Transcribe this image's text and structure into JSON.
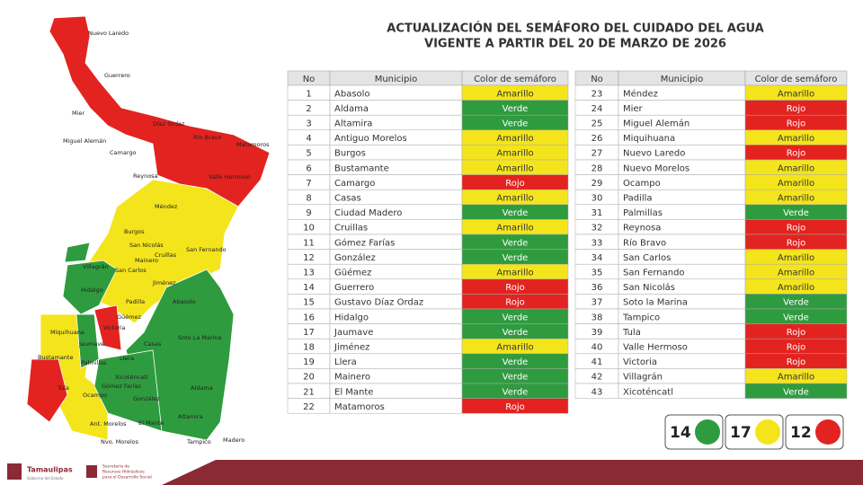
{
  "title": [
    "ACTUALIZACIÓN DEL SEMÁFORO DEL CUIDADO DEL AGUA",
    "VIGENTE A PARTIR DEL 20 DE MARZO DE 2026"
  ],
  "table_header": [
    "No",
    "Municipio",
    "Color de semáforo"
  ],
  "status_colors": {
    "Amarillo": {
      "fill": "#f4e41c",
      "text": "#333"
    },
    "Verde": {
      "fill": "#2f9b3f",
      "text": "#fff"
    },
    "Rojo": {
      "fill": "#e3231f",
      "text": "#fff"
    }
  },
  "tables": [
    {
      "rows": [
        [
          1,
          "Abasolo",
          "Amarillo"
        ],
        [
          2,
          "Aldama",
          "Verde"
        ],
        [
          3,
          "Altamira",
          "Verde"
        ],
        [
          4,
          "Antiguo Morelos",
          "Amarillo"
        ],
        [
          5,
          "Burgos",
          "Amarillo"
        ],
        [
          6,
          "Bustamante",
          "Amarillo"
        ],
        [
          7,
          "Camargo",
          "Rojo"
        ],
        [
          8,
          "Casas",
          "Amarillo"
        ],
        [
          9,
          "Ciudad Madero",
          "Verde"
        ],
        [
          10,
          "Cruillas",
          "Amarillo"
        ],
        [
          11,
          "Gómez Farías",
          "Verde"
        ],
        [
          12,
          "González",
          "Verde"
        ],
        [
          13,
          "Güémez",
          "Amarillo"
        ],
        [
          14,
          "Guerrero",
          "Rojo"
        ],
        [
          15,
          "Gustavo Díaz Ordaz",
          "Rojo"
        ],
        [
          16,
          "Hidalgo",
          "Verde"
        ],
        [
          17,
          "Jaumave",
          "Verde"
        ],
        [
          18,
          "Jiménez",
          "Amarillo"
        ],
        [
          19,
          "Llera",
          "Verde"
        ],
        [
          20,
          "Mainero",
          "Verde"
        ],
        [
          21,
          "El Mante",
          "Verde"
        ],
        [
          22,
          "Matamoros",
          "Rojo"
        ]
      ]
    },
    {
      "rows": [
        [
          23,
          "Méndez",
          "Amarillo"
        ],
        [
          24,
          "Mier",
          "Rojo"
        ],
        [
          25,
          "Miguel Alemán",
          "Rojo"
        ],
        [
          26,
          "Miquihuana",
          "Amarillo"
        ],
        [
          27,
          "Nuevo Laredo",
          "Rojo"
        ],
        [
          28,
          "Nuevo Morelos",
          "Amarillo"
        ],
        [
          29,
          "Ocampo",
          "Amarillo"
        ],
        [
          30,
          "Padilla",
          "Amarillo"
        ],
        [
          31,
          "Palmillas",
          "Verde"
        ],
        [
          32,
          "Reynosa",
          "Rojo"
        ],
        [
          33,
          "Río Bravo",
          "Rojo"
        ],
        [
          34,
          "San Carlos",
          "Amarillo"
        ],
        [
          35,
          "San Fernando",
          "Amarillo"
        ],
        [
          36,
          "San Nicolás",
          "Amarillo"
        ],
        [
          37,
          "Soto la Marina",
          "Verde"
        ],
        [
          38,
          "Tampico",
          "Verde"
        ],
        [
          39,
          "Tula",
          "Rojo"
        ],
        [
          40,
          "Valle Hermoso",
          "Rojo"
        ],
        [
          41,
          "Victoria",
          "Rojo"
        ],
        [
          42,
          "Villagrán",
          "Amarillo"
        ],
        [
          43,
          "Xicoténcatl",
          "Verde"
        ]
      ]
    }
  ],
  "summary": [
    {
      "count": 14,
      "color": "#2f9b3f"
    },
    {
      "count": 17,
      "color": "#f4e41c"
    },
    {
      "count": 12,
      "color": "#e3231f"
    }
  ],
  "map_labels": [
    "Nuevo Laredo",
    "Guerrero",
    "Mier",
    "Díaz Ordaz",
    "Miguel Alemán",
    "Camargo",
    "Río Bravo",
    "Matamoros",
    "Reynosa",
    "Valle Hermoso",
    "Méndez",
    "Burgos",
    "San Nicolás",
    "San Fernando",
    "Cruillas",
    "Mainero",
    "Villagrán",
    "San Carlos",
    "Hidalgo",
    "Jiménez",
    "Padilla",
    "Abasolo",
    "Güémez",
    "Miquihuana",
    "Victoria",
    "Jaumave",
    "Casas",
    "Soto La Marina",
    "Bustamante",
    "Palmillas",
    "Llera",
    "Tula",
    "Xicoténcatl",
    "Gómez Farías",
    "González",
    "Aldama",
    "Ocampo",
    "El Mante",
    "Altamira",
    "Ant. Morelos",
    "Nvo. Morelos",
    "Madero",
    "Tampico"
  ],
  "footer": {
    "logo": "Tamaulipas",
    "logo_sub": "Gobierno del Estado",
    "agency": [
      "Secretaría de",
      "Recursos Hidráulicos",
      "para el Desarrollo Social"
    ]
  }
}
